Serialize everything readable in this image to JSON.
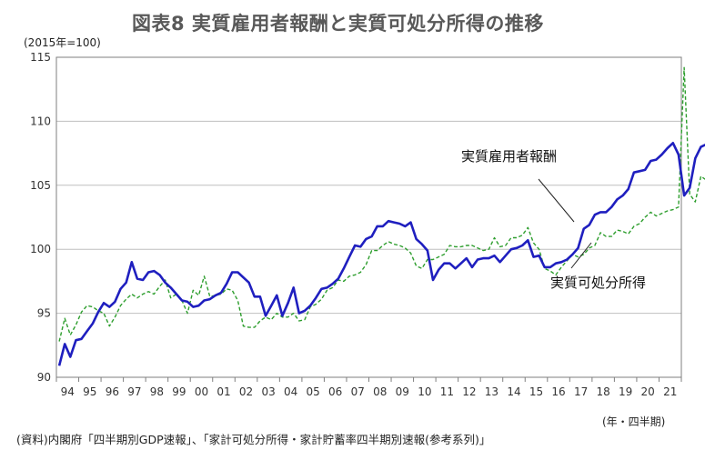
{
  "chart_data": {
    "type": "line",
    "title": "図表8 実質雇用者報酬と実質可処分所得の推移",
    "y_unit": "(2015年=100)",
    "x_unit": "(年・四半期)",
    "source": "(資料)内閣府「四半期別GDP速報」、「家計可処分所得・家計貯蓄率四半期別速報(参考系列)」",
    "ylim": [
      90,
      115
    ],
    "y_ticks": [
      90,
      95,
      100,
      105,
      110,
      115
    ],
    "x_tick_labels": [
      "94",
      "95",
      "96",
      "97",
      "98",
      "99",
      "00",
      "01",
      "02",
      "03",
      "04",
      "05",
      "06",
      "07",
      "08",
      "09",
      "10",
      "11",
      "12",
      "13",
      "14",
      "15",
      "16",
      "17",
      "18",
      "19",
      "20",
      "21"
    ],
    "grid": "horizontal",
    "series": [
      {
        "name": "実質雇用者報酬",
        "color": "#1f1fbf",
        "style": "solid",
        "values": [
          90.9,
          92.6,
          91.6,
          92.9,
          93.0,
          93.6,
          94.2,
          95.1,
          95.8,
          95.5,
          95.9,
          96.9,
          97.4,
          99.0,
          97.7,
          97.6,
          98.2,
          98.3,
          98.0,
          97.4,
          97.0,
          96.5,
          96.0,
          95.9,
          95.5,
          95.6,
          96.0,
          96.1,
          96.4,
          96.6,
          97.3,
          98.2,
          98.2,
          97.8,
          97.4,
          96.3,
          96.3,
          94.8,
          95.6,
          96.4,
          94.8,
          95.8,
          97.0,
          95.0,
          95.2,
          95.6,
          96.2,
          96.9,
          97.0,
          97.3,
          97.7,
          98.5,
          99.4,
          100.3,
          100.2,
          100.8,
          101.0,
          101.8,
          101.8,
          102.2,
          102.1,
          102.0,
          101.8,
          102.1,
          100.8,
          100.4,
          99.9,
          97.6,
          98.4,
          98.9,
          98.9,
          98.5,
          98.9,
          99.3,
          98.6,
          99.2,
          99.3,
          99.3,
          99.5,
          99.0,
          99.5,
          100.0,
          100.1,
          100.3,
          100.7,
          99.4,
          99.5,
          98.6,
          98.6,
          98.9,
          99.0,
          99.2,
          99.6,
          100.1,
          101.6,
          101.9,
          102.7,
          102.9,
          102.9,
          103.3,
          103.9,
          104.2,
          104.7,
          106.0,
          106.1,
          106.2,
          106.9,
          107.0,
          107.4,
          107.9,
          108.3,
          107.4,
          104.2,
          104.8,
          107.1,
          108.0,
          108.2,
          108.0,
          108.3
        ]
      },
      {
        "name": "実質可処分所得",
        "color": "#2e9e2e",
        "style": "dashed",
        "values": [
          92.8,
          94.6,
          93.3,
          94.1,
          95.1,
          95.6,
          95.5,
          95.2,
          95.0,
          94.0,
          94.7,
          95.6,
          96.1,
          96.5,
          96.2,
          96.5,
          96.7,
          96.5,
          97.1,
          97.6,
          96.2,
          96.5,
          96.0,
          95.0,
          96.8,
          96.4,
          97.9,
          96.3,
          96.4,
          96.5,
          96.9,
          96.8,
          96.0,
          94.0,
          93.9,
          93.9,
          94.4,
          94.7,
          94.5,
          95.0,
          94.7,
          94.7,
          95.0,
          94.4,
          94.5,
          95.5,
          95.7,
          96.1,
          96.8,
          97.0,
          97.6,
          97.5,
          97.9,
          98.0,
          98.2,
          98.8,
          99.9,
          99.9,
          100.3,
          100.6,
          100.4,
          100.3,
          100.1,
          99.7,
          98.7,
          98.5,
          99.2,
          99.2,
          99.4,
          99.6,
          100.3,
          100.2,
          100.2,
          100.3,
          100.3,
          100.1,
          99.9,
          100.0,
          100.9,
          100.2,
          100.3,
          100.9,
          100.9,
          101.1,
          101.7,
          100.5,
          100.0,
          98.5,
          98.3,
          98.0,
          98.6,
          99.1,
          99.6,
          99.4,
          99.6,
          100.1,
          100.3,
          101.3,
          101.0,
          101.0,
          101.5,
          101.4,
          101.2,
          101.8,
          102.0,
          102.5,
          102.9,
          102.6,
          102.8,
          103.0,
          103.1,
          103.3,
          114.2,
          104.3,
          103.7,
          105.7,
          105.4,
          104.8,
          104.8
        ]
      }
    ],
    "annotations": [
      {
        "text": "実質雇用者報酬",
        "series": "実質雇用者報酬"
      },
      {
        "text": "実質可処分所得",
        "series": "実質可処分所得"
      }
    ]
  }
}
